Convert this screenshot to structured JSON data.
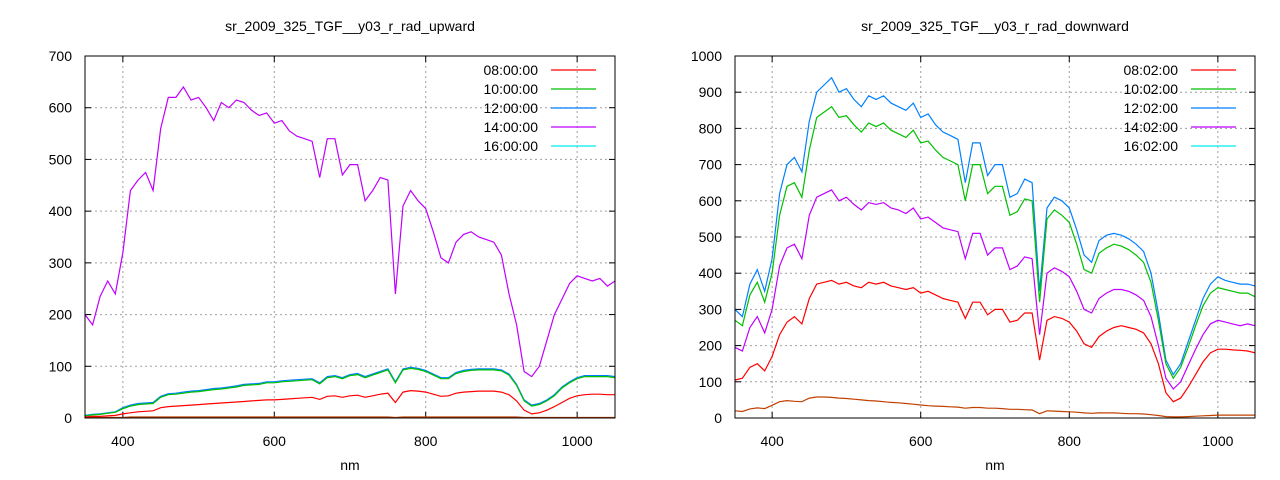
{
  "chart_data": [
    {
      "type": "line",
      "title": "sr_2009_325_TGF__y03_r_rad_upward",
      "xlabel": "nm",
      "ylabel": "",
      "xlim": [
        350,
        1050
      ],
      "ylim": [
        0,
        700
      ],
      "xticks": [
        400,
        600,
        800,
        1000
      ],
      "yticks": [
        0,
        100,
        200,
        300,
        400,
        500,
        600,
        700
      ],
      "grid": true,
      "legend_position": "top-right",
      "x": {
        "start": 350,
        "step": 10,
        "count": 71
      },
      "series": [
        {
          "name": "08:00:00",
          "color": "#ff0000",
          "line_color": "#ff0000",
          "values": [
            2,
            3,
            3,
            4,
            5,
            8,
            10,
            12,
            13,
            14,
            20,
            22,
            23,
            24,
            25,
            26,
            27,
            28,
            29,
            30,
            31,
            32,
            33,
            34,
            35,
            35,
            36,
            37,
            38,
            39,
            40,
            36,
            42,
            43,
            40,
            43,
            44,
            40,
            43,
            46,
            48,
            30,
            50,
            53,
            52,
            50,
            46,
            42,
            43,
            48,
            50,
            51,
            52,
            52,
            52,
            50,
            45,
            33,
            15,
            8,
            10,
            15,
            22,
            30,
            38,
            43,
            45,
            46,
            46,
            45,
            45
          ]
        },
        {
          "name": "10:00:00",
          "color": "#00c000",
          "line_color": "#00c000",
          "values": [
            4,
            6,
            7,
            9,
            11,
            18,
            23,
            26,
            27,
            28,
            40,
            45,
            46,
            48,
            50,
            51,
            53,
            55,
            56,
            58,
            60,
            63,
            64,
            65,
            68,
            68,
            70,
            71,
            72,
            73,
            74,
            66,
            78,
            80,
            76,
            82,
            84,
            78,
            83,
            88,
            93,
            68,
            93,
            96,
            94,
            90,
            83,
            76,
            76,
            86,
            90,
            92,
            93,
            93,
            93,
            91,
            83,
            63,
            33,
            23,
            26,
            33,
            43,
            58,
            68,
            76,
            80,
            80,
            80,
            80,
            78
          ]
        },
        {
          "name": "12:00:00",
          "color": "#0080ff",
          "line_color": "#0080ff",
          "values": [
            5,
            7,
            8,
            10,
            12,
            20,
            25,
            28,
            29,
            30,
            42,
            47,
            48,
            50,
            52,
            53,
            55,
            57,
            58,
            60,
            62,
            65,
            66,
            67,
            70,
            70,
            72,
            73,
            74,
            75,
            76,
            68,
            80,
            82,
            78,
            84,
            86,
            80,
            85,
            90,
            95,
            70,
            95,
            98,
            96,
            92,
            85,
            78,
            78,
            88,
            92,
            94,
            95,
            95,
            95,
            93,
            85,
            65,
            35,
            25,
            28,
            35,
            45,
            60,
            70,
            78,
            82,
            82,
            82,
            82,
            80
          ]
        },
        {
          "name": "14:00:00",
          "color": "#c000ff",
          "line_color": "#c000ff",
          "values": [
            200,
            180,
            235,
            265,
            240,
            320,
            440,
            460,
            475,
            440,
            560,
            620,
            620,
            640,
            615,
            620,
            600,
            575,
            610,
            600,
            615,
            610,
            595,
            585,
            590,
            570,
            575,
            555,
            545,
            540,
            535,
            465,
            540,
            540,
            470,
            490,
            490,
            420,
            440,
            465,
            460,
            240,
            410,
            440,
            420,
            405,
            360,
            310,
            300,
            340,
            355,
            360,
            350,
            345,
            340,
            315,
            240,
            180,
            90,
            80,
            100,
            150,
            200,
            230,
            260,
            275,
            270,
            265,
            270,
            255,
            265
          ]
        },
        {
          "name": "16:00:00",
          "color": "#00eeee",
          "line_color": "#c04000",
          "values": [
            1,
            1,
            1,
            1,
            1,
            1,
            2,
            2,
            2,
            2,
            2,
            2,
            2,
            2,
            2,
            2,
            2,
            2,
            2,
            2,
            2,
            2,
            2,
            2,
            2,
            2,
            2,
            2,
            2,
            2,
            2,
            2,
            2,
            2,
            2,
            2,
            2,
            2,
            2,
            2,
            2,
            1,
            2,
            2,
            2,
            2,
            2,
            2,
            2,
            2,
            2,
            2,
            2,
            2,
            2,
            2,
            2,
            2,
            1,
            1,
            1,
            1,
            1,
            1,
            1,
            1,
            1,
            1,
            1,
            1,
            1
          ]
        }
      ]
    },
    {
      "type": "line",
      "title": "sr_2009_325_TGF__y03_r_rad_downward",
      "xlabel": "nm",
      "ylabel": "",
      "xlim": [
        350,
        1050
      ],
      "ylim": [
        0,
        1000
      ],
      "xticks": [
        400,
        600,
        800,
        1000
      ],
      "yticks": [
        0,
        100,
        200,
        300,
        400,
        500,
        600,
        700,
        800,
        900,
        1000
      ],
      "grid": true,
      "legend_position": "top-right",
      "x": {
        "start": 350,
        "step": 10,
        "count": 71
      },
      "series": [
        {
          "name": "08:02:00",
          "color": "#ff0000",
          "line_color": "#ff0000",
          "values": [
            105,
            110,
            140,
            150,
            130,
            170,
            230,
            265,
            280,
            260,
            330,
            370,
            375,
            380,
            370,
            375,
            365,
            360,
            375,
            370,
            375,
            365,
            360,
            355,
            360,
            345,
            350,
            340,
            330,
            325,
            320,
            275,
            320,
            320,
            285,
            300,
            300,
            265,
            270,
            290,
            290,
            160,
            270,
            280,
            275,
            265,
            240,
            205,
            195,
            225,
            240,
            250,
            255,
            250,
            245,
            235,
            205,
            150,
            70,
            45,
            55,
            85,
            120,
            155,
            180,
            190,
            190,
            188,
            187,
            185,
            180
          ]
        },
        {
          "name": "10:02:00",
          "color": "#00c000",
          "line_color": "#00c000",
          "values": [
            270,
            255,
            340,
            375,
            320,
            400,
            560,
            640,
            650,
            610,
            740,
            830,
            845,
            860,
            830,
            835,
            810,
            790,
            815,
            805,
            815,
            795,
            785,
            775,
            795,
            760,
            765,
            740,
            720,
            710,
            700,
            600,
            700,
            700,
            620,
            640,
            640,
            560,
            570,
            605,
            600,
            320,
            550,
            575,
            560,
            540,
            480,
            410,
            400,
            455,
            470,
            480,
            475,
            465,
            450,
            430,
            375,
            270,
            150,
            110,
            140,
            195,
            255,
            310,
            345,
            360,
            355,
            350,
            345,
            345,
            335
          ]
        },
        {
          "name": "12:02:00",
          "color": "#0080ff",
          "line_color": "#0080ff",
          "values": [
            300,
            280,
            370,
            410,
            350,
            440,
            620,
            700,
            720,
            680,
            820,
            900,
            920,
            940,
            900,
            910,
            880,
            860,
            890,
            880,
            890,
            870,
            860,
            850,
            870,
            830,
            840,
            810,
            790,
            780,
            770,
            650,
            760,
            760,
            670,
            700,
            700,
            610,
            620,
            660,
            650,
            350,
            580,
            610,
            600,
            580,
            520,
            450,
            430,
            490,
            505,
            510,
            505,
            495,
            480,
            460,
            400,
            290,
            160,
            120,
            150,
            210,
            270,
            330,
            370,
            390,
            380,
            375,
            370,
            370,
            365
          ]
        },
        {
          "name": "14:02:00",
          "color": "#c000ff",
          "line_color": "#c000ff",
          "values": [
            195,
            185,
            250,
            280,
            235,
            300,
            420,
            470,
            480,
            440,
            560,
            610,
            620,
            630,
            600,
            610,
            590,
            575,
            595,
            590,
            595,
            580,
            575,
            565,
            580,
            550,
            555,
            540,
            525,
            520,
            515,
            440,
            510,
            510,
            450,
            470,
            470,
            410,
            420,
            445,
            440,
            230,
            400,
            415,
            405,
            390,
            350,
            300,
            290,
            330,
            345,
            355,
            355,
            350,
            340,
            325,
            280,
            200,
            110,
            80,
            100,
            145,
            190,
            230,
            260,
            270,
            265,
            260,
            255,
            260,
            255
          ]
        },
        {
          "name": "16:02:00",
          "color": "#00eeee",
          "line_color": "#c04000",
          "values": [
            20,
            18,
            25,
            28,
            26,
            35,
            45,
            48,
            46,
            45,
            55,
            58,
            58,
            57,
            55,
            54,
            52,
            50,
            48,
            47,
            45,
            43,
            42,
            40,
            38,
            36,
            34,
            33,
            32,
            31,
            30,
            27,
            29,
            29,
            27,
            27,
            26,
            24,
            24,
            23,
            22,
            12,
            20,
            19,
            18,
            17,
            16,
            14,
            13,
            14,
            14,
            14,
            13,
            12,
            12,
            11,
            9,
            7,
            4,
            3,
            3,
            4,
            5,
            6,
            7,
            8,
            8,
            8,
            8,
            8,
            8
          ]
        }
      ]
    }
  ]
}
